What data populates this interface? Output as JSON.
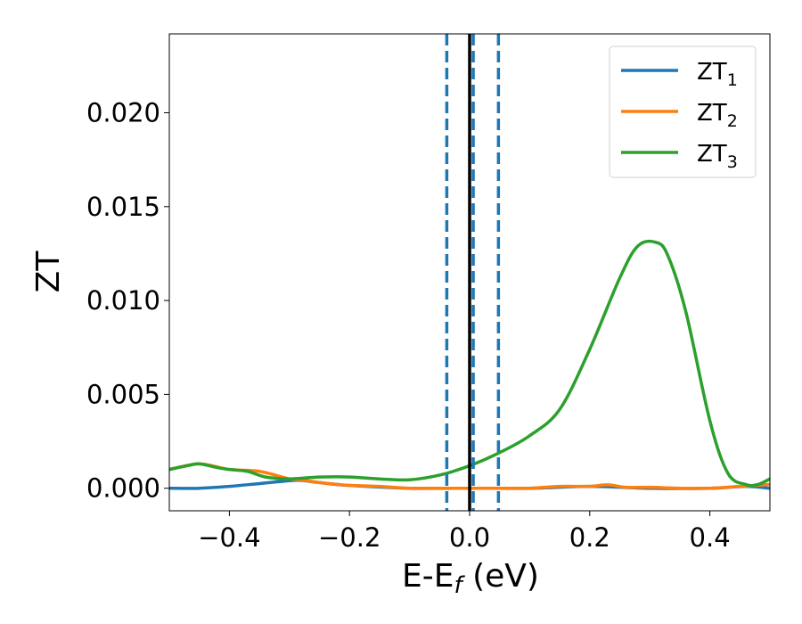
{
  "chart_data": {
    "type": "line",
    "xlabel": "E-E",
    "xlabel_sub": "f",
    "xlabel_unit": " (eV)",
    "ylabel": "ZT",
    "xlim": [
      -0.5,
      0.5
    ],
    "ylim": [
      -0.0012,
      0.0242
    ],
    "xticks": [
      -0.4,
      -0.2,
      0.0,
      0.2,
      0.4
    ],
    "xtick_labels": [
      "−0.4",
      "−0.2",
      "0.0",
      "0.2",
      "0.4"
    ],
    "yticks": [
      0.0,
      0.005,
      0.01,
      0.015,
      0.02
    ],
    "ytick_labels": [
      "0.000",
      "0.005",
      "0.010",
      "0.015",
      "0.020"
    ],
    "legend_position": "top-right",
    "vlines": [
      {
        "x": -0.038,
        "style": "dashed",
        "color": "#1f77b4"
      },
      {
        "x": 0.006,
        "style": "dashed",
        "color": "#1f77b4"
      },
      {
        "x": 0.048,
        "style": "dashed",
        "color": "#1f77b4"
      },
      {
        "x": 0.0,
        "style": "solid",
        "color": "#000000"
      }
    ],
    "series": [
      {
        "name": "ZT",
        "name_sub": "1",
        "color": "#1f77b4",
        "x": [
          -0.5,
          -0.45,
          -0.4,
          -0.35,
          -0.3,
          -0.28,
          -0.25,
          -0.2,
          -0.1,
          0.0,
          0.1,
          0.2,
          0.3,
          0.4,
          0.46,
          0.5
        ],
        "y": [
          0.0,
          0.0,
          0.0001,
          0.00025,
          0.0004,
          0.00042,
          0.0003,
          0.00015,
          0.0,
          0.0,
          0.0,
          0.0001,
          0.0,
          0.0,
          0.0001,
          0.0
        ]
      },
      {
        "name": "ZT",
        "name_sub": "2",
        "color": "#ff7f0e",
        "x": [
          -0.5,
          -0.45,
          -0.4,
          -0.35,
          -0.3,
          -0.28,
          -0.25,
          -0.22,
          -0.2,
          -0.15,
          -0.1,
          -0.05,
          0.0,
          0.05,
          0.1,
          0.15,
          0.2,
          0.23,
          0.26,
          0.3,
          0.35,
          0.4,
          0.45,
          0.5
        ],
        "y": [
          0.001,
          0.0013,
          0.001,
          0.0009,
          0.0005,
          0.00045,
          0.0003,
          0.0002,
          0.00015,
          0.0001,
          0.0,
          0.0,
          0.0,
          0.0,
          0.0,
          0.0001,
          0.0001,
          0.00018,
          5e-05,
          5e-05,
          0.0,
          0.0,
          0.0001,
          0.0002
        ]
      },
      {
        "name": "ZT",
        "name_sub": "3",
        "color": "#2ca02c",
        "x": [
          -0.5,
          -0.47,
          -0.45,
          -0.42,
          -0.4,
          -0.37,
          -0.34,
          -0.3,
          -0.25,
          -0.2,
          -0.15,
          -0.1,
          -0.05,
          0.0,
          0.05,
          0.1,
          0.15,
          0.2,
          0.25,
          0.28,
          0.31,
          0.33,
          0.36,
          0.4,
          0.43,
          0.46,
          0.48,
          0.5
        ],
        "y": [
          0.001,
          0.0012,
          0.0013,
          0.0011,
          0.001,
          0.0009,
          0.0006,
          0.0005,
          0.0006,
          0.0006,
          0.0005,
          0.00045,
          0.0007,
          0.0012,
          0.0019,
          0.0028,
          0.0042,
          0.0074,
          0.0112,
          0.0129,
          0.0131,
          0.0124,
          0.0094,
          0.0036,
          0.0008,
          0.0002,
          0.0002,
          0.0005
        ]
      }
    ]
  }
}
